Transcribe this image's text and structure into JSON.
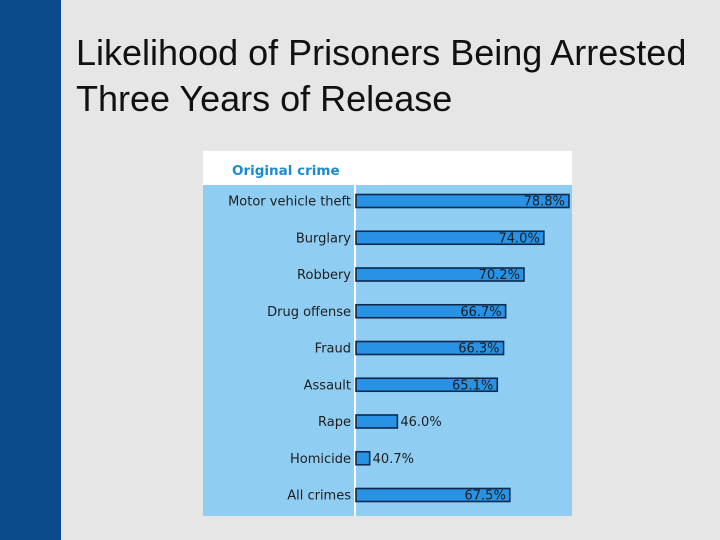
{
  "slide": {
    "title": "Likelihood of Prisoners Being Arrested Three Years of Release",
    "band_color": "#0b4a8b",
    "background": "#e6e6e6"
  },
  "chart_data": {
    "type": "bar",
    "orientation": "horizontal",
    "header_label": "Original crime",
    "categories": [
      "Motor vehicle theft",
      "Burglary",
      "Robbery",
      "Drug offense",
      "Fraud",
      "Assault",
      "Rape",
      "Homicide",
      "All crimes"
    ],
    "values": [
      78.8,
      74.0,
      70.2,
      66.7,
      66.3,
      65.1,
      46.0,
      40.7,
      67.5
    ],
    "value_labels": [
      "78.8%",
      "74.0%",
      "70.2%",
      "66.7%",
      "66.3%",
      "65.1%",
      "46.0%",
      "40.7%",
      "67.5%"
    ],
    "xlim": [
      40,
      80
    ],
    "colors": {
      "panel": "#8fcdf3",
      "header_bg": "#ffffff",
      "header_text": "#1a8ad4",
      "bar": "#2a92e4",
      "bar_outline": "#0d2a4d",
      "label_text": "#1e1e1e"
    }
  }
}
